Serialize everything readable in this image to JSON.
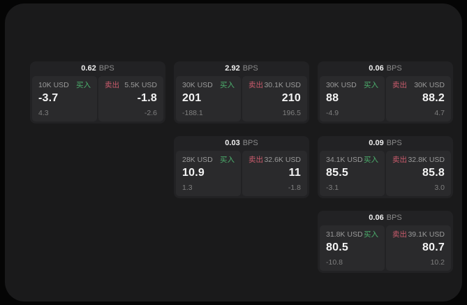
{
  "labels": {
    "buy": "买入",
    "sell": "卖出",
    "bps": "BPS"
  },
  "colors": {
    "buy": "#4caf6d",
    "sell": "#c95b6c",
    "panel_bg": "#1a1a1b",
    "card_bg": "#222224",
    "quote_bg": "#2a2a2c"
  },
  "cards": [
    {
      "row": 0,
      "col": 0,
      "spread_bps": "0.62",
      "buy": {
        "size": "10K USD",
        "price": "-3.7",
        "sub": "4.3"
      },
      "sell": {
        "size": "5.5K USD",
        "price": "-1.8",
        "sub": "-2.6"
      }
    },
    {
      "row": 0,
      "col": 1,
      "spread_bps": "2.92",
      "buy": {
        "size": "30K USD",
        "price": "201",
        "sub": "-188.1"
      },
      "sell": {
        "size": "30.1K USD",
        "price": "210",
        "sub": "196.5"
      }
    },
    {
      "row": 0,
      "col": 2,
      "spread_bps": "0.06",
      "buy": {
        "size": "30K USD",
        "price": "88",
        "sub": "-4.9"
      },
      "sell": {
        "size": "30K USD",
        "price": "88.2",
        "sub": "4.7"
      }
    },
    {
      "row": 1,
      "col": 1,
      "spread_bps": "0.03",
      "buy": {
        "size": "28K USD",
        "price": "10.9",
        "sub": "1.3"
      },
      "sell": {
        "size": "32.6K USD",
        "price": "11",
        "sub": "-1.8"
      }
    },
    {
      "row": 1,
      "col": 2,
      "spread_bps": "0.09",
      "buy": {
        "size": "34.1K USD",
        "price": "85.5",
        "sub": "-3.1"
      },
      "sell": {
        "size": "32.8K USD",
        "price": "85.8",
        "sub": "3.0"
      }
    },
    {
      "row": 2,
      "col": 2,
      "spread_bps": "0.06",
      "buy": {
        "size": "31.8K USD",
        "price": "80.5",
        "sub": "-10.8"
      },
      "sell": {
        "size": "39.1K USD",
        "price": "80.7",
        "sub": "10.2"
      }
    }
  ]
}
